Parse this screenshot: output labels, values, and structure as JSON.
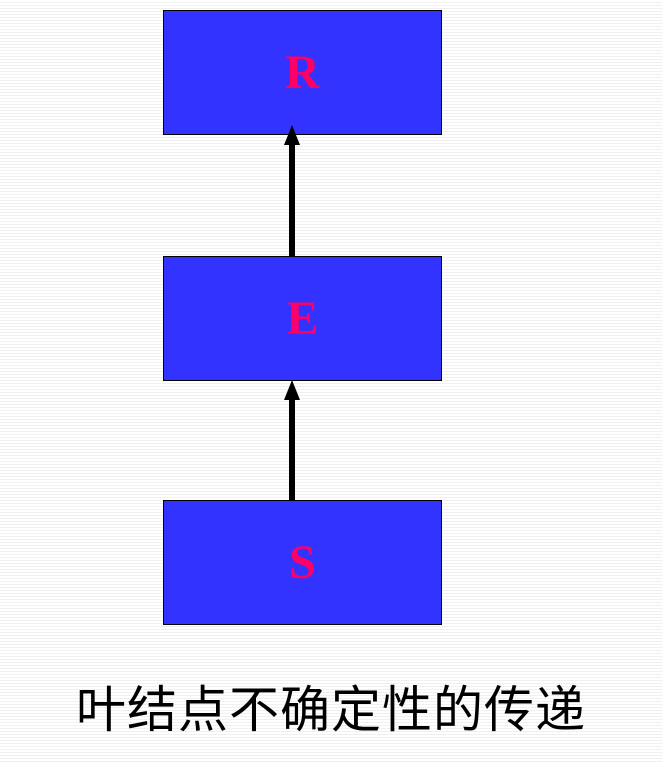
{
  "diagram": {
    "nodes": [
      {
        "id": "R",
        "label": "R"
      },
      {
        "id": "E",
        "label": "E"
      },
      {
        "id": "S",
        "label": "S"
      }
    ],
    "edges": [
      {
        "from": "S",
        "to": "E"
      },
      {
        "from": "E",
        "to": "R"
      }
    ],
    "caption": "叶结点不确定性的传递"
  },
  "colors": {
    "node_fill": "#3333ff",
    "node_label": "#ff0066",
    "arrow": "#000000"
  }
}
